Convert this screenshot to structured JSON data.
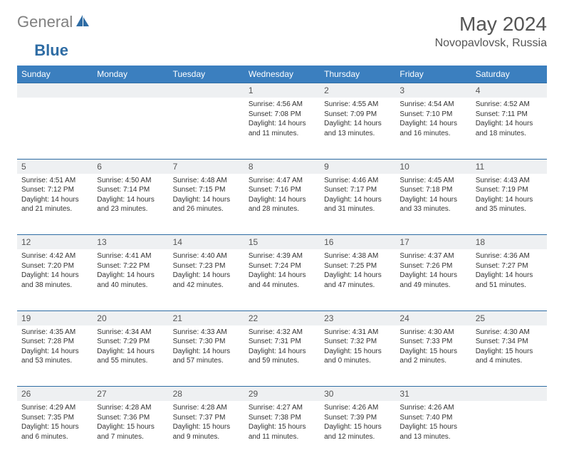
{
  "brand": {
    "general": "General",
    "blue": "Blue"
  },
  "title": "May 2024",
  "location": "Novopavlovsk, Russia",
  "colors": {
    "header_bg": "#3b7fbf",
    "border": "#2e6ca4",
    "daynum_bg": "#eef0f2",
    "text": "#333333",
    "title_text": "#555555"
  },
  "day_headers": [
    "Sunday",
    "Monday",
    "Tuesday",
    "Wednesday",
    "Thursday",
    "Friday",
    "Saturday"
  ],
  "weeks": [
    [
      null,
      null,
      null,
      {
        "n": "1",
        "sr": "Sunrise: 4:56 AM",
        "ss": "Sunset: 7:08 PM",
        "d1": "Daylight: 14 hours",
        "d2": "and 11 minutes."
      },
      {
        "n": "2",
        "sr": "Sunrise: 4:55 AM",
        "ss": "Sunset: 7:09 PM",
        "d1": "Daylight: 14 hours",
        "d2": "and 13 minutes."
      },
      {
        "n": "3",
        "sr": "Sunrise: 4:54 AM",
        "ss": "Sunset: 7:10 PM",
        "d1": "Daylight: 14 hours",
        "d2": "and 16 minutes."
      },
      {
        "n": "4",
        "sr": "Sunrise: 4:52 AM",
        "ss": "Sunset: 7:11 PM",
        "d1": "Daylight: 14 hours",
        "d2": "and 18 minutes."
      }
    ],
    [
      {
        "n": "5",
        "sr": "Sunrise: 4:51 AM",
        "ss": "Sunset: 7:12 PM",
        "d1": "Daylight: 14 hours",
        "d2": "and 21 minutes."
      },
      {
        "n": "6",
        "sr": "Sunrise: 4:50 AM",
        "ss": "Sunset: 7:14 PM",
        "d1": "Daylight: 14 hours",
        "d2": "and 23 minutes."
      },
      {
        "n": "7",
        "sr": "Sunrise: 4:48 AM",
        "ss": "Sunset: 7:15 PM",
        "d1": "Daylight: 14 hours",
        "d2": "and 26 minutes."
      },
      {
        "n": "8",
        "sr": "Sunrise: 4:47 AM",
        "ss": "Sunset: 7:16 PM",
        "d1": "Daylight: 14 hours",
        "d2": "and 28 minutes."
      },
      {
        "n": "9",
        "sr": "Sunrise: 4:46 AM",
        "ss": "Sunset: 7:17 PM",
        "d1": "Daylight: 14 hours",
        "d2": "and 31 minutes."
      },
      {
        "n": "10",
        "sr": "Sunrise: 4:45 AM",
        "ss": "Sunset: 7:18 PM",
        "d1": "Daylight: 14 hours",
        "d2": "and 33 minutes."
      },
      {
        "n": "11",
        "sr": "Sunrise: 4:43 AM",
        "ss": "Sunset: 7:19 PM",
        "d1": "Daylight: 14 hours",
        "d2": "and 35 minutes."
      }
    ],
    [
      {
        "n": "12",
        "sr": "Sunrise: 4:42 AM",
        "ss": "Sunset: 7:20 PM",
        "d1": "Daylight: 14 hours",
        "d2": "and 38 minutes."
      },
      {
        "n": "13",
        "sr": "Sunrise: 4:41 AM",
        "ss": "Sunset: 7:22 PM",
        "d1": "Daylight: 14 hours",
        "d2": "and 40 minutes."
      },
      {
        "n": "14",
        "sr": "Sunrise: 4:40 AM",
        "ss": "Sunset: 7:23 PM",
        "d1": "Daylight: 14 hours",
        "d2": "and 42 minutes."
      },
      {
        "n": "15",
        "sr": "Sunrise: 4:39 AM",
        "ss": "Sunset: 7:24 PM",
        "d1": "Daylight: 14 hours",
        "d2": "and 44 minutes."
      },
      {
        "n": "16",
        "sr": "Sunrise: 4:38 AM",
        "ss": "Sunset: 7:25 PM",
        "d1": "Daylight: 14 hours",
        "d2": "and 47 minutes."
      },
      {
        "n": "17",
        "sr": "Sunrise: 4:37 AM",
        "ss": "Sunset: 7:26 PM",
        "d1": "Daylight: 14 hours",
        "d2": "and 49 minutes."
      },
      {
        "n": "18",
        "sr": "Sunrise: 4:36 AM",
        "ss": "Sunset: 7:27 PM",
        "d1": "Daylight: 14 hours",
        "d2": "and 51 minutes."
      }
    ],
    [
      {
        "n": "19",
        "sr": "Sunrise: 4:35 AM",
        "ss": "Sunset: 7:28 PM",
        "d1": "Daylight: 14 hours",
        "d2": "and 53 minutes."
      },
      {
        "n": "20",
        "sr": "Sunrise: 4:34 AM",
        "ss": "Sunset: 7:29 PM",
        "d1": "Daylight: 14 hours",
        "d2": "and 55 minutes."
      },
      {
        "n": "21",
        "sr": "Sunrise: 4:33 AM",
        "ss": "Sunset: 7:30 PM",
        "d1": "Daylight: 14 hours",
        "d2": "and 57 minutes."
      },
      {
        "n": "22",
        "sr": "Sunrise: 4:32 AM",
        "ss": "Sunset: 7:31 PM",
        "d1": "Daylight: 14 hours",
        "d2": "and 59 minutes."
      },
      {
        "n": "23",
        "sr": "Sunrise: 4:31 AM",
        "ss": "Sunset: 7:32 PM",
        "d1": "Daylight: 15 hours",
        "d2": "and 0 minutes."
      },
      {
        "n": "24",
        "sr": "Sunrise: 4:30 AM",
        "ss": "Sunset: 7:33 PM",
        "d1": "Daylight: 15 hours",
        "d2": "and 2 minutes."
      },
      {
        "n": "25",
        "sr": "Sunrise: 4:30 AM",
        "ss": "Sunset: 7:34 PM",
        "d1": "Daylight: 15 hours",
        "d2": "and 4 minutes."
      }
    ],
    [
      {
        "n": "26",
        "sr": "Sunrise: 4:29 AM",
        "ss": "Sunset: 7:35 PM",
        "d1": "Daylight: 15 hours",
        "d2": "and 6 minutes."
      },
      {
        "n": "27",
        "sr": "Sunrise: 4:28 AM",
        "ss": "Sunset: 7:36 PM",
        "d1": "Daylight: 15 hours",
        "d2": "and 7 minutes."
      },
      {
        "n": "28",
        "sr": "Sunrise: 4:28 AM",
        "ss": "Sunset: 7:37 PM",
        "d1": "Daylight: 15 hours",
        "d2": "and 9 minutes."
      },
      {
        "n": "29",
        "sr": "Sunrise: 4:27 AM",
        "ss": "Sunset: 7:38 PM",
        "d1": "Daylight: 15 hours",
        "d2": "and 11 minutes."
      },
      {
        "n": "30",
        "sr": "Sunrise: 4:26 AM",
        "ss": "Sunset: 7:39 PM",
        "d1": "Daylight: 15 hours",
        "d2": "and 12 minutes."
      },
      {
        "n": "31",
        "sr": "Sunrise: 4:26 AM",
        "ss": "Sunset: 7:40 PM",
        "d1": "Daylight: 15 hours",
        "d2": "and 13 minutes."
      },
      null
    ]
  ]
}
